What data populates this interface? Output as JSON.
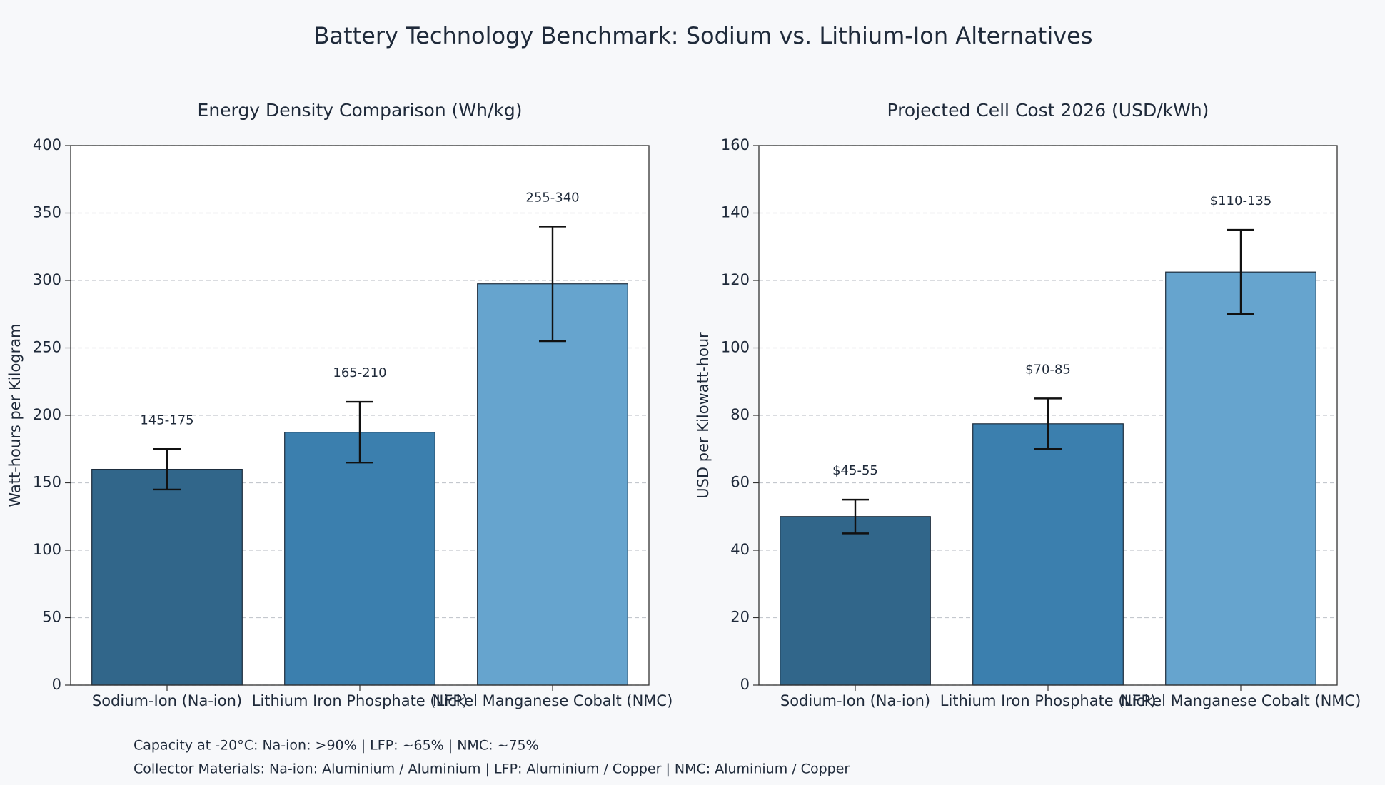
{
  "title": "Battery Technology Benchmark: Sodium vs. Lithium-Ion Alternatives",
  "chart_data": [
    {
      "type": "bar",
      "title": "Energy Density Comparison (Wh/kg)",
      "y_label": "Watt-hours per Kilogram",
      "categories": [
        "Sodium-Ion (Na-ion)",
        "Lithium Iron Phosphate (LFP)",
        "Nickel Manganese Cobalt (NMC)"
      ],
      "values": [
        160,
        187.5,
        297.5
      ],
      "errors": [
        15,
        22.5,
        42.5
      ],
      "range_labels": [
        "145-175",
        "165-210",
        "255-340"
      ],
      "colors": [
        "#31668a",
        "#3b7fae",
        "#66a4ce"
      ],
      "ylim": [
        0,
        400
      ],
      "yticks": [
        0,
        50,
        100,
        150,
        200,
        250,
        300,
        350,
        400
      ],
      "grid": true
    },
    {
      "type": "bar",
      "title": "Projected Cell Cost 2026 (USD/kWh)",
      "y_label": "USD per Kilowatt-hour",
      "categories": [
        "Sodium-Ion (Na-ion)",
        "Lithium Iron Phosphate (LFP)",
        "Nickel Manganese Cobalt (NMC)"
      ],
      "values": [
        50,
        77.5,
        122.5
      ],
      "errors": [
        5,
        7.5,
        12.5
      ],
      "range_labels": [
        "$45-55",
        "$70-85",
        "$110-135"
      ],
      "colors": [
        "#31668a",
        "#3b7fae",
        "#66a4ce"
      ],
      "ylim": [
        0,
        160
      ],
      "yticks": [
        0,
        20,
        40,
        60,
        80,
        100,
        120,
        140,
        160
      ],
      "grid": true
    }
  ],
  "footnotes": [
    "Capacity at -20°C:  Na-ion: >90% | LFP: ~65% | NMC: ~75%",
    "Collector Materials: Na-ion: Aluminium / Aluminium | LFP: Aluminium / Copper | NMC: Aluminium / Copper"
  ]
}
